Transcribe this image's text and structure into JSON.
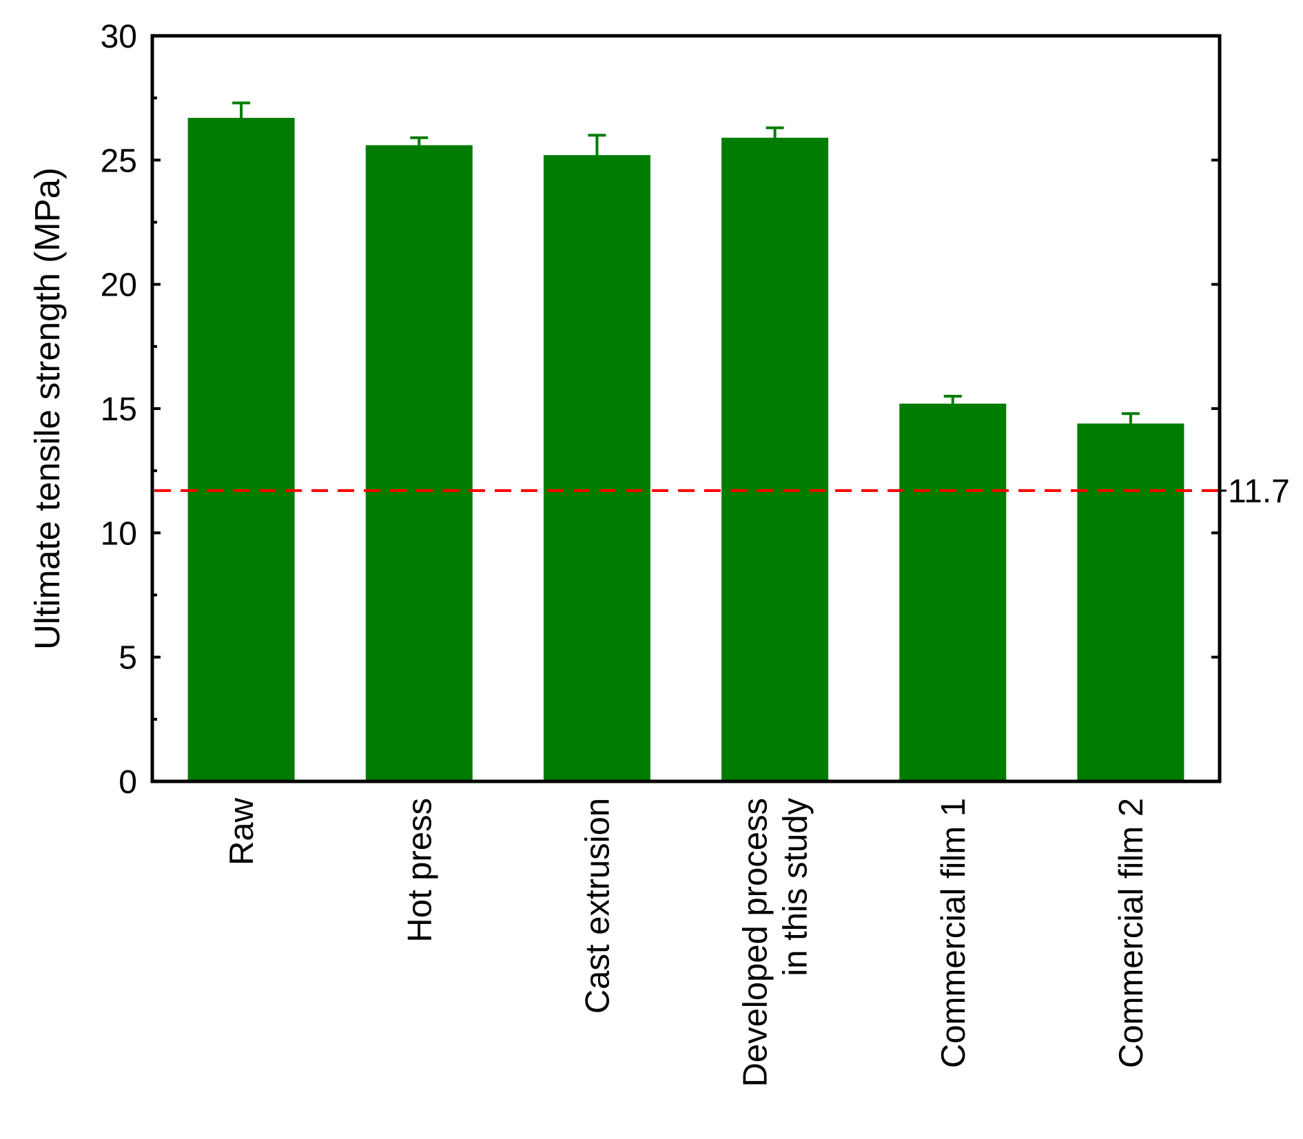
{
  "chart_data": {
    "type": "bar",
    "categories": [
      [
        "Raw"
      ],
      [
        "Hot press"
      ],
      [
        "Cast extrusion"
      ],
      [
        "Developed process",
        "in this study"
      ],
      [
        "Commercial film 1"
      ],
      [
        "Commercial film 2"
      ]
    ],
    "values": [
      26.7,
      25.6,
      25.2,
      25.9,
      15.2,
      14.4
    ],
    "errors": [
      0.6,
      0.3,
      0.8,
      0.4,
      0.3,
      0.4
    ],
    "ylabel": "Ultimate tensile strength (MPa)",
    "xlabel": "",
    "ylim": [
      0,
      30
    ],
    "yticks": [
      0,
      5,
      10,
      15,
      20,
      25,
      30
    ],
    "reference_line": {
      "value": 11.7,
      "label": "11.7",
      "color": "#ff0000",
      "style": "dashed"
    },
    "bar_color": "#007d00",
    "grid": false,
    "legend": "none"
  }
}
